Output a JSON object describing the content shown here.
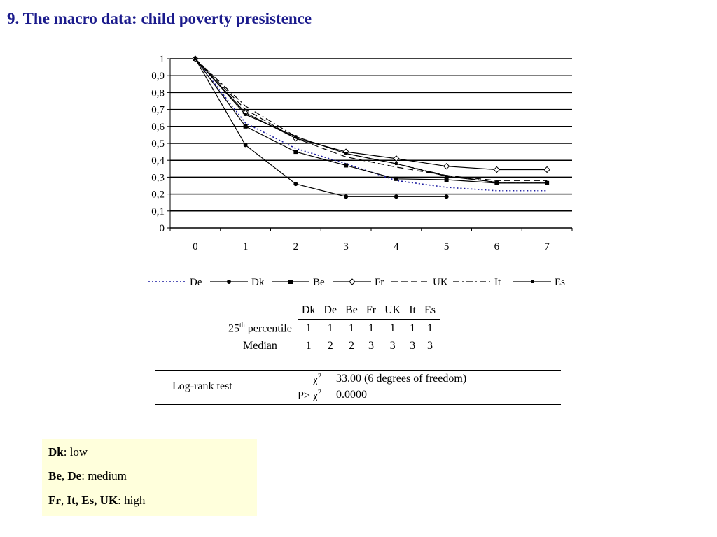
{
  "title": "9. The macro data: child poverty presistence",
  "chart_data": {
    "type": "line",
    "title": "",
    "xlabel": "",
    "ylabel": "",
    "x": [
      0,
      1,
      2,
      3,
      4,
      5,
      6,
      7
    ],
    "ylim": [
      0,
      1
    ],
    "yticks": [
      "0",
      "0,1",
      "0,2",
      "0,3",
      "0,4",
      "0,5",
      "0,6",
      "0,7",
      "0,8",
      "0,9",
      "1"
    ],
    "xticks": [
      "0",
      "1",
      "2",
      "3",
      "4",
      "5",
      "6",
      "7"
    ],
    "grid": true,
    "legend_position": "bottom",
    "series": [
      {
        "name": "De",
        "color": "#1a1aa0",
        "dash": "dotted",
        "marker": "none",
        "values": [
          1,
          0.62,
          0.47,
          0.38,
          0.28,
          0.24,
          0.22,
          0.22
        ]
      },
      {
        "name": "Dk",
        "color": "#000000",
        "dash": "solid",
        "marker": "circle",
        "values": [
          1,
          0.49,
          0.26,
          0.185,
          0.185,
          0.185,
          null,
          null
        ]
      },
      {
        "name": "Be",
        "color": "#000000",
        "dash": "solid",
        "marker": "square",
        "values": [
          1,
          0.6,
          0.45,
          0.37,
          0.29,
          0.285,
          0.265,
          0.265
        ]
      },
      {
        "name": "Fr",
        "color": "#000000",
        "dash": "solid",
        "marker": "diamond",
        "values": [
          1,
          0.68,
          0.53,
          0.45,
          0.41,
          0.365,
          0.345,
          0.345
        ]
      },
      {
        "name": "UK",
        "color": "#000000",
        "dash": "dashed",
        "marker": "none",
        "values": [
          1,
          0.7,
          0.53,
          0.42,
          0.36,
          0.31,
          0.28,
          0.28
        ]
      },
      {
        "name": "It",
        "color": "#000000",
        "dash": "dashdot",
        "marker": "none",
        "values": [
          1,
          0.72,
          0.54,
          0.44,
          0.38,
          0.31,
          0.27,
          0.27
        ]
      },
      {
        "name": "Es",
        "color": "#000000",
        "dash": "solid",
        "marker": "smallsquare",
        "values": [
          1,
          0.67,
          0.54,
          0.44,
          0.38,
          0.305,
          0.27,
          0.27
        ]
      }
    ]
  },
  "percentile_table": {
    "columns": [
      "Dk",
      "De",
      "Be",
      "Fr",
      "UK",
      "It",
      "Es"
    ],
    "rows": [
      {
        "label_pre": "25",
        "label_sup": "th",
        "label_post": " percentile",
        "values": [
          "1",
          "1",
          "1",
          "1",
          "1",
          "1",
          "1"
        ]
      },
      {
        "label": "Median",
        "values": [
          "1",
          "2",
          "2",
          "3",
          "3",
          "3",
          "3"
        ]
      }
    ]
  },
  "logrank": {
    "label": "Log-rank test",
    "chi_symbol": "χ",
    "sup": "2",
    "eq": "=",
    "p_prefix": "P> ",
    "chi_value": "33.00 (6 degrees of freedom)",
    "p_value": "0.0000"
  },
  "key": {
    "background": "#ffffdc",
    "lines": [
      {
        "bold": "Dk",
        "text": ": low"
      },
      {
        "bold1": "Be",
        "sep": ", ",
        "bold2": "De",
        "text": ": medium"
      },
      {
        "bold1": "Fr",
        "sep": ", ",
        "bold2": "It, Es, UK",
        "text": ": high"
      }
    ]
  }
}
